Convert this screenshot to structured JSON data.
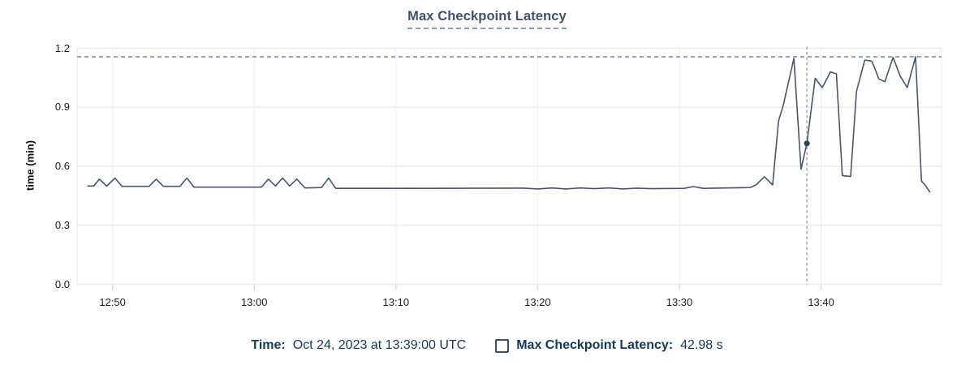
{
  "title": "Max Checkpoint Latency",
  "y_axis": {
    "label": "time (min)"
  },
  "legend": {
    "time_label": "Time:",
    "time_value": "Oct 24, 2023 at 13:39:00 UTC",
    "series_label": "Max Checkpoint Latency:",
    "series_value": "42.98 s",
    "checkbox_icon": "empty-square"
  },
  "colors": {
    "accent_navy": "#16385C",
    "title_slate": "#42526B",
    "line": "#47566E",
    "dot": "#2E3F58",
    "threshold_dash": "#697C99",
    "cursor_dash": "#9BA3AD",
    "grid": "#ECECEC",
    "grid_vertical": "#F1F1F1",
    "tick_mark": "#D8D8D8",
    "tick_text": "#1C1C1C"
  },
  "chart_data": {
    "type": "line",
    "title": "Max Checkpoint Latency",
    "xlabel": "",
    "ylabel": "time (min)",
    "unit": "min",
    "ylim": [
      0,
      1.2
    ],
    "y_tick_values": [
      0.0,
      0.3,
      0.6,
      0.9,
      1.2
    ],
    "y_tick_labels": [
      "0.0",
      "0.3",
      "0.6",
      "0.9",
      "1.2"
    ],
    "x_domain": [
      "12:47:30",
      "13:48:30"
    ],
    "x_tick_times": [
      "12:50:00",
      "13:00:00",
      "13:10:00",
      "13:20:00",
      "13:30:00",
      "13:40:00"
    ],
    "x_tick_labels": [
      "12:50",
      "13:00",
      "13:10",
      "13:20",
      "13:30",
      "13:40"
    ],
    "grid": true,
    "legend_position": "bottom-center",
    "max_line_value": 1.157,
    "highlight": {
      "time": "13:39:00",
      "value_min": 0.7163,
      "value_label": "42.98 s"
    },
    "points": [
      [
        "12:48:15",
        0.5
      ],
      [
        "12:48:40",
        0.5
      ],
      [
        "12:49:05",
        0.535
      ],
      [
        "12:49:35",
        0.499
      ],
      [
        "12:50:10",
        0.54
      ],
      [
        "12:50:40",
        0.498
      ],
      [
        "12:52:35",
        0.498
      ],
      [
        "12:53:05",
        0.535
      ],
      [
        "12:53:35",
        0.498
      ],
      [
        "12:54:45",
        0.498
      ],
      [
        "12:55:15",
        0.54
      ],
      [
        "12:55:45",
        0.494
      ],
      [
        "13:00:30",
        0.494
      ],
      [
        "13:01:00",
        0.535
      ],
      [
        "13:01:30",
        0.5
      ],
      [
        "13:02:00",
        0.54
      ],
      [
        "13:02:30",
        0.5
      ],
      [
        "13:03:00",
        0.535
      ],
      [
        "13:03:35",
        0.49
      ],
      [
        "13:04:45",
        0.492
      ],
      [
        "13:05:15",
        0.54
      ],
      [
        "13:05:45",
        0.488
      ],
      [
        "13:10:00",
        0.488
      ],
      [
        "13:19:00",
        0.489
      ],
      [
        "13:20:00",
        0.485
      ],
      [
        "13:21:00",
        0.49
      ],
      [
        "13:22:00",
        0.485
      ],
      [
        "13:23:00",
        0.49
      ],
      [
        "13:24:00",
        0.486
      ],
      [
        "13:25:00",
        0.49
      ],
      [
        "13:26:00",
        0.485
      ],
      [
        "13:27:00",
        0.489
      ],
      [
        "13:28:00",
        0.486
      ],
      [
        "13:30:20",
        0.488
      ],
      [
        "13:31:00",
        0.497
      ],
      [
        "13:31:40",
        0.488
      ],
      [
        "13:35:00",
        0.492
      ],
      [
        "13:35:25",
        0.506
      ],
      [
        "13:36:00",
        0.547
      ],
      [
        "13:36:35",
        0.505
      ],
      [
        "13:37:00",
        0.83
      ],
      [
        "13:37:20",
        0.91
      ],
      [
        "13:38:05",
        1.148
      ],
      [
        "13:38:35",
        0.585
      ],
      [
        "13:39:00",
        0.7163
      ],
      [
        "13:39:35",
        1.047
      ],
      [
        "13:40:05",
        1.0
      ],
      [
        "13:40:40",
        1.08
      ],
      [
        "13:41:05",
        1.07
      ],
      [
        "13:41:30",
        0.553
      ],
      [
        "13:42:05",
        0.548
      ],
      [
        "13:42:30",
        0.98
      ],
      [
        "13:43:05",
        1.14
      ],
      [
        "13:43:35",
        1.134
      ],
      [
        "13:44:05",
        1.044
      ],
      [
        "13:44:30",
        1.03
      ],
      [
        "13:45:05",
        1.154
      ],
      [
        "13:45:35",
        1.058
      ],
      [
        "13:46:05",
        1.0
      ],
      [
        "13:46:40",
        1.157
      ],
      [
        "13:47:05",
        0.525
      ],
      [
        "13:47:20",
        0.505
      ],
      [
        "13:47:40",
        0.47
      ]
    ]
  }
}
